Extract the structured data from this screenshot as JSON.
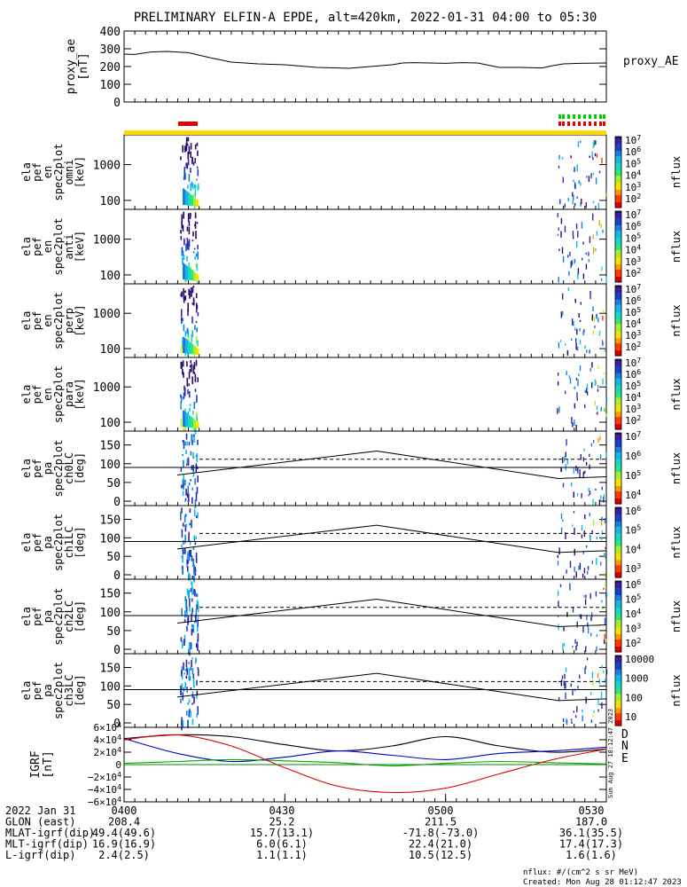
{
  "title": "PRELIMINARY ELFIN-A EPDE, alt=420km, 2022-01-31 04:00 to 05:30",
  "colors": {
    "axis": "#000000",
    "bar_yellow": "#ffd800",
    "bar_red": "#e00000",
    "bar_green": "#00cc00",
    "igrf_N": "#0000cc",
    "igrf_E": "#00aa00",
    "igrf_D": "#dd0000",
    "igrf_T": "#000000"
  },
  "footer": {
    "units": "nflux: #/(cm^2 s sr MeV)",
    "created": "Created: Mon Aug 28 01:12:47 2023",
    "side_stamp": "Sun Aug 27 18:12:47 2023"
  },
  "orbit_table": {
    "rows": [
      {
        "label": "2022 Jan 31",
        "values": [
          "0400",
          "0430",
          "0500",
          "0530"
        ]
      },
      {
        "label": "GLON (east)",
        "values": [
          "208.4",
          "25.2",
          "211.5",
          "187.0"
        ]
      },
      {
        "label": "MLAT-igrf(dip)",
        "values": [
          "49.4(49.6)",
          "15.7(13.1)",
          "-71.8(-73.0)",
          "36.1(35.5)"
        ]
      },
      {
        "label": "MLT-igrf(dip)",
        "values": [
          "16.9(16.9)",
          "6.0(6.1)",
          "22.4(21.0)",
          "17.4(17.3)"
        ]
      },
      {
        "label": "L-igrf(dip)",
        "values": [
          "2.4(2.5)",
          "1.1(1.1)",
          "10.5(12.5)",
          "1.6(1.6)"
        ]
      }
    ]
  },
  "chart_data": [
    {
      "type": "line",
      "ylabel": [
        "proxy_ae",
        "[nT]"
      ],
      "legend": "proxy_AE",
      "ylim": [
        0,
        400
      ],
      "yticks": [
        "400",
        "300",
        "200",
        "100",
        "0"
      ],
      "x_minutes": [
        0,
        2,
        5,
        8,
        12,
        16,
        20,
        25,
        30,
        36,
        42,
        46,
        50,
        52,
        54,
        57,
        60,
        63,
        66,
        70,
        74,
        78,
        80,
        82,
        85,
        90
      ],
      "values": [
        270,
        268,
        282,
        285,
        278,
        250,
        225,
        215,
        210,
        195,
        190,
        200,
        210,
        220,
        222,
        220,
        218,
        222,
        220,
        195,
        195,
        192,
        205,
        215,
        218,
        220
      ]
    },
    {
      "type": "heatmap",
      "ylabel": [
        "ela",
        "pef",
        "en",
        "spec2plot",
        "omni",
        "[keV]"
      ],
      "yticks": [
        "1000",
        "100"
      ],
      "colorbar": {
        "label": "nflux",
        "ticks": [
          "10^7",
          "10^6",
          "10^5",
          "10^4",
          "10^3",
          "10^2"
        ]
      }
    },
    {
      "type": "heatmap",
      "ylabel": [
        "ela",
        "pef",
        "en",
        "spec2plot",
        "anti",
        "[keV]"
      ],
      "yticks": [
        "1000",
        "100"
      ],
      "colorbar": {
        "label": "nflux",
        "ticks": [
          "10^7",
          "10^6",
          "10^5",
          "10^4",
          "10^3",
          "10^2"
        ]
      }
    },
    {
      "type": "heatmap",
      "ylabel": [
        "ela",
        "pef",
        "en",
        "spec2plot",
        "perp",
        "[keV]"
      ],
      "yticks": [
        "1000",
        "100"
      ],
      "colorbar": {
        "label": "nflux",
        "ticks": [
          "10^7",
          "10^6",
          "10^5",
          "10^4",
          "10^3",
          "10^2"
        ]
      }
    },
    {
      "type": "heatmap",
      "ylabel": [
        "ela",
        "pef",
        "en",
        "spec2plot",
        "para",
        "[keV]"
      ],
      "yticks": [
        "1000",
        "100"
      ],
      "colorbar": {
        "label": "nflux",
        "ticks": [
          "10^7",
          "10^6",
          "10^5",
          "10^4",
          "10^3",
          "10^2"
        ]
      }
    },
    {
      "type": "heatmap",
      "ylabel": [
        "ela",
        "pef",
        "pa",
        "spec2plot",
        "ch0LC",
        "[deg]"
      ],
      "yticks": [
        "150",
        "100",
        "50",
        "0"
      ],
      "colorbar": {
        "label": "nflux",
        "ticks": [
          "10^7",
          "10^6",
          "10^5",
          "10^4"
        ]
      }
    },
    {
      "type": "heatmap",
      "ylabel": [
        "ela",
        "pef",
        "pa",
        "spec2plot",
        "ch1LC",
        "[deg]"
      ],
      "yticks": [
        "150",
        "100",
        "50",
        "0"
      ],
      "colorbar": {
        "label": "nflux",
        "ticks": [
          "10^6",
          "10^5",
          "10^4",
          "10^3"
        ]
      }
    },
    {
      "type": "heatmap",
      "ylabel": [
        "ela",
        "pef",
        "pa",
        "spec2plot",
        "ch2LC",
        "[deg]"
      ],
      "yticks": [
        "150",
        "100",
        "50",
        "0"
      ],
      "colorbar": {
        "label": "nflux",
        "ticks": [
          "10^6",
          "10^5",
          "10^4",
          "10^3",
          "10^2"
        ]
      }
    },
    {
      "type": "heatmap",
      "ylabel": [
        "ela",
        "pef",
        "pa",
        "spec2plot",
        "ch3LC",
        "[deg]"
      ],
      "yticks": [
        "150",
        "100",
        "50",
        "0"
      ],
      "colorbar": {
        "label": "nflux",
        "ticks": [
          "10000",
          "1000",
          "100",
          "10"
        ]
      }
    },
    {
      "type": "line",
      "ylabel": [
        "IGRF",
        "[nT]"
      ],
      "ylim": [
        -60000,
        60000
      ],
      "yticks": [
        "6×10^4",
        "4×10^4",
        "2×10^4",
        "0",
        "−2×10^4",
        "−4×10^4",
        "−6×10^4"
      ],
      "series": [
        {
          "name": "T",
          "x": [
            0,
            10,
            20,
            30,
            40,
            50,
            60,
            70,
            80,
            90
          ],
          "values": [
            42000,
            48000,
            45000,
            32000,
            22000,
            30000,
            45000,
            30000,
            20000,
            25000
          ]
        },
        {
          "name": "N",
          "x": [
            0,
            10,
            20,
            30,
            40,
            50,
            60,
            70,
            80,
            90
          ],
          "values": [
            42000,
            18000,
            5000,
            12000,
            22000,
            15000,
            8000,
            18000,
            22000,
            28000
          ]
        },
        {
          "name": "E",
          "x": [
            0,
            10,
            20,
            30,
            40,
            50,
            60,
            70,
            80,
            90
          ],
          "values": [
            2000,
            5000,
            8000,
            6000,
            3000,
            -2000,
            2000,
            5000,
            3000,
            1000
          ]
        },
        {
          "name": "D",
          "x": [
            0,
            10,
            20,
            30,
            40,
            50,
            60,
            70,
            80,
            90
          ],
          "values": [
            40000,
            48000,
            30000,
            -5000,
            -35000,
            -45000,
            -38000,
            -15000,
            8000,
            25000
          ]
        }
      ]
    }
  ]
}
